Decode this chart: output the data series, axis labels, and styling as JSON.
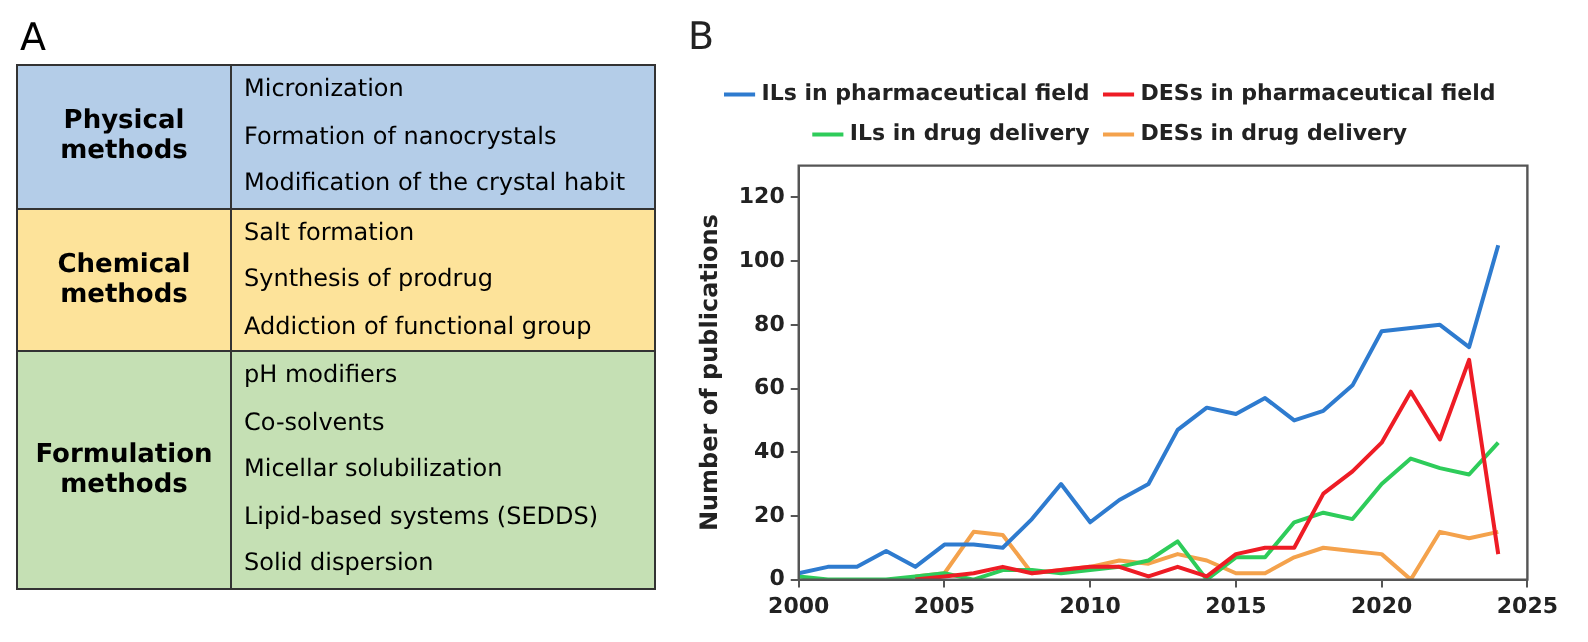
{
  "chart_data": [
    {
      "type": "other",
      "title": "A",
      "y_categories": [
        "Physical methods",
        "Chemical methods",
        "Formulation methods"
      ],
      "colors": [
        "#b4cde8",
        "#fde39a",
        "#c5e0b4"
      ],
      "cell_labels": [
        [
          "Micronization",
          "Formation of nanocrystals",
          "Modification of the crystal habit"
        ],
        [
          "Salt formation",
          "Synthesis of prodrug",
          "Addiction of functional group"
        ],
        [
          "pH modifiers",
          "Co-solvents",
          "Micellar solubilization",
          "Lipid-based systems (SEDDS)",
          "Solid dispersion"
        ]
      ]
    },
    {
      "type": "line",
      "title": "B",
      "ylabel": "Number of publications",
      "x": [
        2000,
        2001,
        2002,
        2003,
        2004,
        2005,
        2006,
        2007,
        2008,
        2009,
        2010,
        2011,
        2012,
        2013,
        2014,
        2015,
        2016,
        2017,
        2018,
        2019,
        2020,
        2021,
        2022,
        2023,
        2024
      ],
      "xlim": [
        2000,
        2025
      ],
      "xticks": [
        2000,
        2005,
        2010,
        2015,
        2020,
        2025
      ],
      "ylim": [
        0,
        130
      ],
      "yticks": [
        0,
        20,
        40,
        60,
        80,
        100,
        120
      ],
      "grid": false,
      "legend": "top",
      "marker": "none",
      "series": [
        {
          "name": "ILs in pharmaceutical field",
          "color": "#2e7bcf",
          "values": [
            2,
            4,
            4,
            9,
            4,
            11,
            11,
            10,
            19,
            30,
            18,
            25,
            30,
            47,
            54,
            52,
            57,
            50,
            53,
            61,
            78,
            79,
            80,
            73,
            105
          ]
        },
        {
          "name": "DESs in pharmaceutical field",
          "color": "#ee1c25",
          "values": [
            null,
            null,
            null,
            null,
            0,
            1,
            2,
            4,
            2,
            3,
            4,
            4,
            1,
            4,
            1,
            8,
            10,
            10,
            27,
            34,
            43,
            59,
            44,
            69,
            8
          ]
        },
        {
          "name": "ILs in drug delivery",
          "color": "#2ecc5a",
          "values": [
            1,
            0,
            0,
            0,
            1,
            2,
            0,
            3,
            3,
            2,
            3,
            4,
            6,
            12,
            0,
            7,
            7,
            18,
            21,
            19,
            30,
            38,
            35,
            33,
            43
          ]
        },
        {
          "name": "DESs in drug delivery",
          "color": "#f4a24c",
          "values": [
            null,
            null,
            null,
            null,
            1,
            2,
            15,
            14,
            2,
            3,
            4,
            6,
            5,
            8,
            6,
            2,
            2,
            7,
            10,
            9,
            8,
            0,
            15,
            13,
            15
          ]
        }
      ]
    }
  ]
}
